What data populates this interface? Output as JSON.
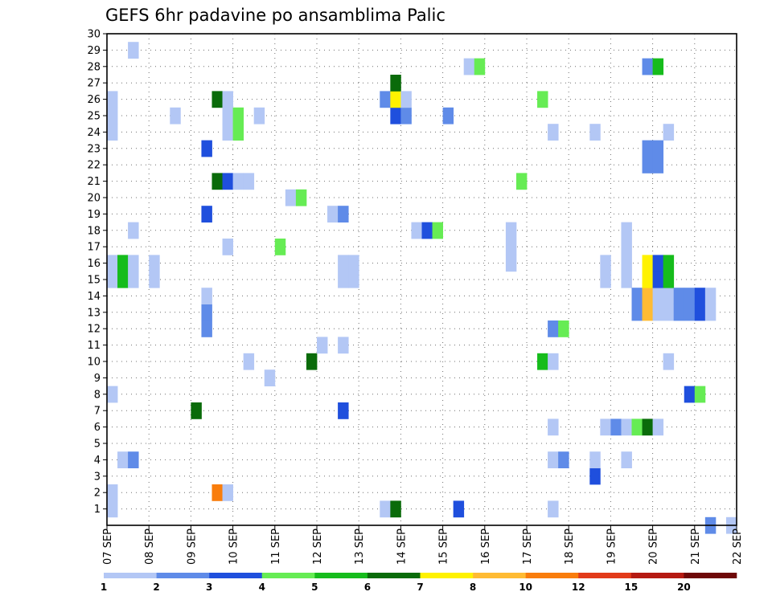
{
  "chart_data": {
    "type": "heatmap",
    "title": "GEFS 6hr padavine po ansamblima Palic",
    "xlabel": "",
    "ylabel": "",
    "x_ticks": [
      "07 SEP",
      "08 SEP",
      "09 SEP",
      "10 SEP",
      "11 SEP",
      "12 SEP",
      "13 SEP",
      "14 SEP",
      "15 SEP",
      "16 SEP",
      "17 SEP",
      "18 SEP",
      "19 SEP",
      "20 SEP",
      "21 SEP",
      "22 SEP"
    ],
    "y_ticks": [
      1,
      2,
      3,
      4,
      5,
      6,
      7,
      8,
      9,
      10,
      11,
      12,
      13,
      14,
      15,
      16,
      17,
      18,
      19,
      20,
      21,
      22,
      23,
      24,
      25,
      26,
      27,
      28,
      29,
      30
    ],
    "ylim": [
      0,
      30
    ],
    "x_unit": "6-hour steps from 07 SEP 00Z",
    "grid": true,
    "colorbar": {
      "labels": [
        "1",
        "2",
        "3",
        "4",
        "5",
        "6",
        "7",
        "8",
        "10",
        "12",
        "15",
        "20"
      ],
      "colors": [
        "#b3c7f5",
        "#5f8be8",
        "#1f4fdd",
        "#66ec54",
        "#16bc1c",
        "#0a6b0a",
        "#fff200",
        "#ffbb33",
        "#f97d0c",
        "#e23a1a",
        "#b51a12",
        "#6e0808"
      ]
    },
    "cells": [
      [
        0,
        1,
        1
      ],
      [
        0,
        2,
        1
      ],
      [
        0,
        8,
        1
      ],
      [
        0,
        15,
        1
      ],
      [
        0,
        16,
        1
      ],
      [
        0,
        24,
        1
      ],
      [
        0,
        25,
        1
      ],
      [
        0,
        26,
        1
      ],
      [
        1,
        4,
        1
      ],
      [
        1,
        15,
        5
      ],
      [
        1,
        16,
        5
      ],
      [
        2,
        4,
        2
      ],
      [
        2,
        15,
        1
      ],
      [
        2,
        16,
        1
      ],
      [
        2,
        18,
        1
      ],
      [
        2,
        29,
        1
      ],
      [
        4,
        15,
        1
      ],
      [
        4,
        16,
        1
      ],
      [
        6,
        25,
        1
      ],
      [
        8,
        7,
        6
      ],
      [
        9,
        12,
        2
      ],
      [
        9,
        13,
        2
      ],
      [
        9,
        14,
        1
      ],
      [
        9,
        19,
        3
      ],
      [
        9,
        23,
        3
      ],
      [
        10,
        2,
        9
      ],
      [
        10,
        21,
        6
      ],
      [
        10,
        26,
        6
      ],
      [
        11,
        2,
        1
      ],
      [
        11,
        17,
        1
      ],
      [
        11,
        21,
        3
      ],
      [
        11,
        24,
        1
      ],
      [
        11,
        25,
        1
      ],
      [
        11,
        26,
        1
      ],
      [
        12,
        21,
        1
      ],
      [
        12,
        24,
        4
      ],
      [
        12,
        25,
        4
      ],
      [
        13,
        10,
        1
      ],
      [
        13,
        21,
        1
      ],
      [
        14,
        25,
        1
      ],
      [
        15,
        9,
        1
      ],
      [
        16,
        17,
        4
      ],
      [
        17,
        20,
        1
      ],
      [
        18,
        20,
        4
      ],
      [
        19,
        10,
        6
      ],
      [
        20,
        11,
        1
      ],
      [
        21,
        19,
        1
      ],
      [
        22,
        7,
        3
      ],
      [
        22,
        11,
        1
      ],
      [
        22,
        15,
        1
      ],
      [
        22,
        16,
        1
      ],
      [
        22,
        19,
        2
      ],
      [
        23,
        15,
        1
      ],
      [
        23,
        16,
        1
      ],
      [
        26,
        1,
        1
      ],
      [
        26,
        26,
        2
      ],
      [
        27,
        1,
        6
      ],
      [
        27,
        25,
        3
      ],
      [
        27,
        26,
        7
      ],
      [
        27,
        27,
        6
      ],
      [
        28,
        25,
        2
      ],
      [
        28,
        26,
        1
      ],
      [
        29,
        18,
        1
      ],
      [
        30,
        18,
        3
      ],
      [
        31,
        18,
        4
      ],
      [
        32,
        25,
        2
      ],
      [
        33,
        1,
        3
      ],
      [
        34,
        28,
        1
      ],
      [
        35,
        28,
        4
      ],
      [
        38,
        16,
        1
      ],
      [
        38,
        17,
        1
      ],
      [
        38,
        18,
        1
      ],
      [
        39,
        21,
        4
      ],
      [
        41,
        10,
        5
      ],
      [
        41,
        26,
        4
      ],
      [
        42,
        1,
        1
      ],
      [
        42,
        4,
        1
      ],
      [
        42,
        6,
        1
      ],
      [
        42,
        10,
        1
      ],
      [
        42,
        12,
        2
      ],
      [
        42,
        24,
        1
      ],
      [
        43,
        4,
        2
      ],
      [
        43,
        12,
        4
      ],
      [
        46,
        3,
        3
      ],
      [
        46,
        4,
        1
      ],
      [
        46,
        24,
        1
      ],
      [
        47,
        6,
        1
      ],
      [
        47,
        15,
        1
      ],
      [
        47,
        16,
        1
      ],
      [
        48,
        6,
        2
      ],
      [
        49,
        6,
        1
      ],
      [
        49,
        15,
        1
      ],
      [
        49,
        16,
        1
      ],
      [
        49,
        17,
        1
      ],
      [
        49,
        18,
        1
      ],
      [
        49,
        4,
        1
      ],
      [
        50,
        6,
        4
      ],
      [
        50,
        13,
        2
      ],
      [
        50,
        14,
        2
      ],
      [
        51,
        6,
        6
      ],
      [
        51,
        13,
        8
      ],
      [
        51,
        14,
        8
      ],
      [
        51,
        15,
        7
      ],
      [
        51,
        16,
        7
      ],
      [
        51,
        22,
        2
      ],
      [
        51,
        23,
        2
      ],
      [
        51,
        28,
        2
      ],
      [
        52,
        6,
        1
      ],
      [
        52,
        13,
        1
      ],
      [
        52,
        14,
        1
      ],
      [
        52,
        15,
        3
      ],
      [
        52,
        16,
        3
      ],
      [
        52,
        22,
        2
      ],
      [
        52,
        23,
        2
      ],
      [
        52,
        28,
        5
      ],
      [
        53,
        10,
        1
      ],
      [
        53,
        13,
        1
      ],
      [
        53,
        14,
        1
      ],
      [
        53,
        15,
        5
      ],
      [
        53,
        16,
        5
      ],
      [
        53,
        24,
        1
      ],
      [
        54,
        13,
        2
      ],
      [
        54,
        14,
        2
      ],
      [
        55,
        8,
        3
      ],
      [
        55,
        13,
        2
      ],
      [
        55,
        14,
        2
      ],
      [
        56,
        8,
        4
      ],
      [
        56,
        13,
        3
      ],
      [
        56,
        14,
        3
      ],
      [
        57,
        13,
        1
      ],
      [
        57,
        14,
        1
      ],
      [
        57,
        0,
        2
      ],
      [
        59,
        0,
        1
      ]
    ]
  }
}
